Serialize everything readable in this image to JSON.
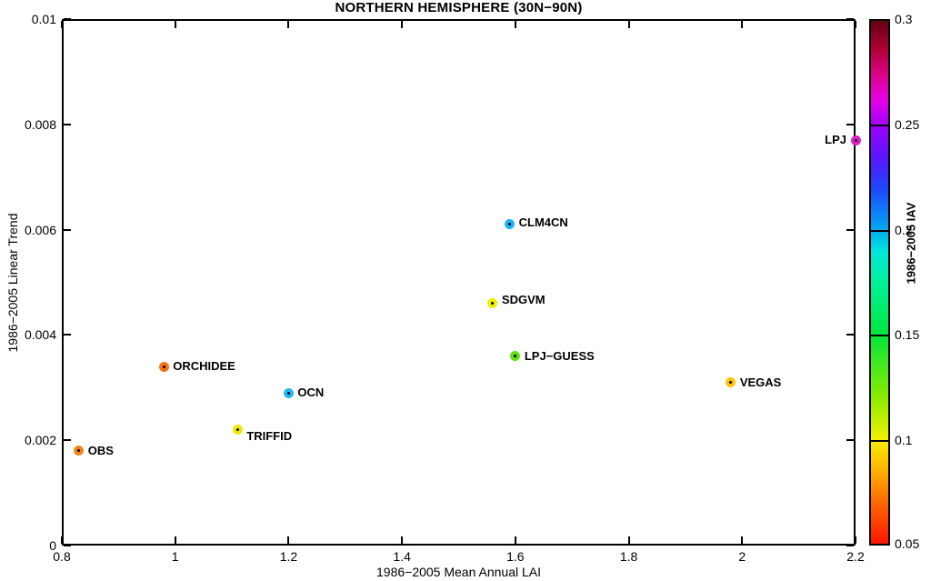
{
  "chart_data": {
    "type": "scatter",
    "title": "NORTHERN HEMISPHERE (30N−90N)",
    "xlabel": "1986−2005 Mean Annual LAI",
    "ylabel": "1986−2005 Linear Trend",
    "xlim": [
      0.8,
      2.2
    ],
    "ylim": [
      0,
      0.01
    ],
    "x_ticks": [
      0.8,
      1.0,
      1.2,
      1.4,
      1.6,
      1.8,
      2.0,
      2.2
    ],
    "x_tick_labels": [
      "0.8",
      "1",
      "1.2",
      "1.4",
      "1.6",
      "1.8",
      "2",
      "2.2"
    ],
    "y_ticks": [
      0,
      0.002,
      0.004,
      0.006,
      0.008,
      0.01
    ],
    "y_tick_labels": [
      "0",
      "0.002",
      "0.004",
      "0.006",
      "0.008",
      "0.01"
    ],
    "grid": false,
    "legend": "none",
    "points": [
      {
        "label": "OBS",
        "x": 0.83,
        "y": 0.0018,
        "iav_est": 0.085,
        "color": "#F5821F",
        "label_side": "right",
        "label_dy": 0
      },
      {
        "label": "ORCHIDEE",
        "x": 0.98,
        "y": 0.0034,
        "iav_est": 0.08,
        "color": "#FA7112",
        "label_side": "right",
        "label_dy": 0
      },
      {
        "label": "TRIFFID",
        "x": 1.11,
        "y": 0.0022,
        "iav_est": 0.1,
        "color": "#F5E800",
        "label_side": "right",
        "label_dy": 7
      },
      {
        "label": "OCN",
        "x": 1.2,
        "y": 0.0029,
        "iav_est": 0.195,
        "color": "#22B8F0",
        "label_side": "right",
        "label_dy": 0
      },
      {
        "label": "SDGVM",
        "x": 1.56,
        "y": 0.0046,
        "iav_est": 0.105,
        "color": "#EDF000",
        "label_side": "right",
        "label_dy": -4
      },
      {
        "label": "CLM4CN",
        "x": 1.59,
        "y": 0.0061,
        "iav_est": 0.195,
        "color": "#1FB4F5",
        "label_side": "right",
        "label_dy": -2
      },
      {
        "label": "LPJ−GUESS",
        "x": 1.6,
        "y": 0.0036,
        "iav_est": 0.135,
        "color": "#5FE019",
        "label_side": "right",
        "label_dy": 0
      },
      {
        "label": "VEGAS",
        "x": 1.98,
        "y": 0.0031,
        "iav_est": 0.092,
        "color": "#FFC408",
        "label_side": "right",
        "label_dy": 0
      },
      {
        "label": "LPJ",
        "x": 2.2,
        "y": 0.0077,
        "iav_est": 0.245,
        "color": "#E01EC8",
        "label_side": "left",
        "label_dy": 0
      }
    ],
    "colorbar": {
      "label": "1986−2005 IAV",
      "min": 0.05,
      "max": 0.3,
      "ticks": [
        0.05,
        0.1,
        0.15,
        0.2,
        0.25,
        0.3
      ],
      "tick_labels": [
        "0.05",
        "0.1",
        "0.15",
        "0.2",
        "0.25",
        "0.3"
      ],
      "gradient_stops": [
        {
          "pos": 0.0,
          "color": "#FF1400"
        },
        {
          "pos": 0.08,
          "color": "#FF6A00"
        },
        {
          "pos": 0.16,
          "color": "#FFC800"
        },
        {
          "pos": 0.2,
          "color": "#F2F000"
        },
        {
          "pos": 0.28,
          "color": "#8CEB00"
        },
        {
          "pos": 0.4,
          "color": "#00E63C"
        },
        {
          "pos": 0.5,
          "color": "#00F09B"
        },
        {
          "pos": 0.56,
          "color": "#00E6DC"
        },
        {
          "pos": 0.6,
          "color": "#00AAF0"
        },
        {
          "pos": 0.68,
          "color": "#1E46FF"
        },
        {
          "pos": 0.74,
          "color": "#5A14FF"
        },
        {
          "pos": 0.8,
          "color": "#A000FA"
        },
        {
          "pos": 0.85,
          "color": "#E600E6"
        },
        {
          "pos": 0.9,
          "color": "#DC0082"
        },
        {
          "pos": 0.95,
          "color": "#AA0032"
        },
        {
          "pos": 1.0,
          "color": "#640014"
        }
      ]
    }
  }
}
